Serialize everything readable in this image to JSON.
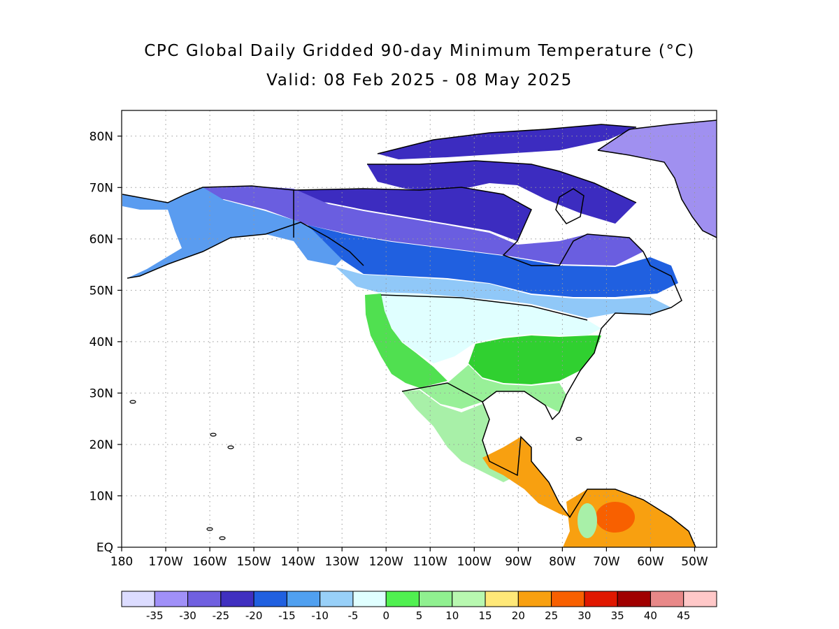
{
  "header": {
    "title": "CPC Global Daily Gridded 90-day Minimum Temperature (°C)",
    "subtitle": "Valid: 08 Feb 2025 - 08 May 2025"
  },
  "map": {
    "lon_labels": [
      "180",
      "170W",
      "160W",
      "150W",
      "140W",
      "130W",
      "120W",
      "110W",
      "100W",
      "90W",
      "80W",
      "70W",
      "60W",
      "50W"
    ],
    "lat_labels": [
      "EQ",
      "10N",
      "20N",
      "30N",
      "40N",
      "50N",
      "60N",
      "70N",
      "80N"
    ],
    "lon_range": [
      -180,
      -45
    ],
    "lat_range": [
      0,
      85
    ],
    "grid": "dotted",
    "regions": [
      {
        "id": "greenland-north",
        "color": "#a090f0"
      },
      {
        "id": "canada-arctic",
        "color": "#3c2cc0"
      },
      {
        "id": "canada-north",
        "color": "#6a5ee0"
      },
      {
        "id": "alaska",
        "color": "#5a9cf0"
      },
      {
        "id": "canada-mid",
        "color": "#2060e0"
      },
      {
        "id": "canada-south",
        "color": "#90c8f8"
      },
      {
        "id": "us-north",
        "color": "#e0ffff"
      },
      {
        "id": "us-west",
        "color": "#50e050"
      },
      {
        "id": "us-east",
        "color": "#30d030"
      },
      {
        "id": "us-south",
        "color": "#98f098"
      },
      {
        "id": "mexico",
        "color": "#a8f0a8"
      },
      {
        "id": "central-america",
        "color": "#f8a010"
      },
      {
        "id": "south-america",
        "color": "#f8a010"
      }
    ]
  },
  "colorbar": {
    "colors": [
      "#dcdcff",
      "#a090f8",
      "#7060e0",
      "#4030c0",
      "#2060e0",
      "#50a0f0",
      "#98d0f8",
      "#e0ffff",
      "#50f050",
      "#90f090",
      "#b8f8b0",
      "#ffe878",
      "#f8a010",
      "#f86000",
      "#e01800",
      "#a00000",
      "#e88888",
      "#ffc8c8"
    ],
    "labels": [
      "-35",
      "-30",
      "-25",
      "-20",
      "-15",
      "-10",
      "-5",
      "0",
      "5",
      "10",
      "15",
      "20",
      "25",
      "30",
      "35",
      "40",
      "45"
    ]
  }
}
